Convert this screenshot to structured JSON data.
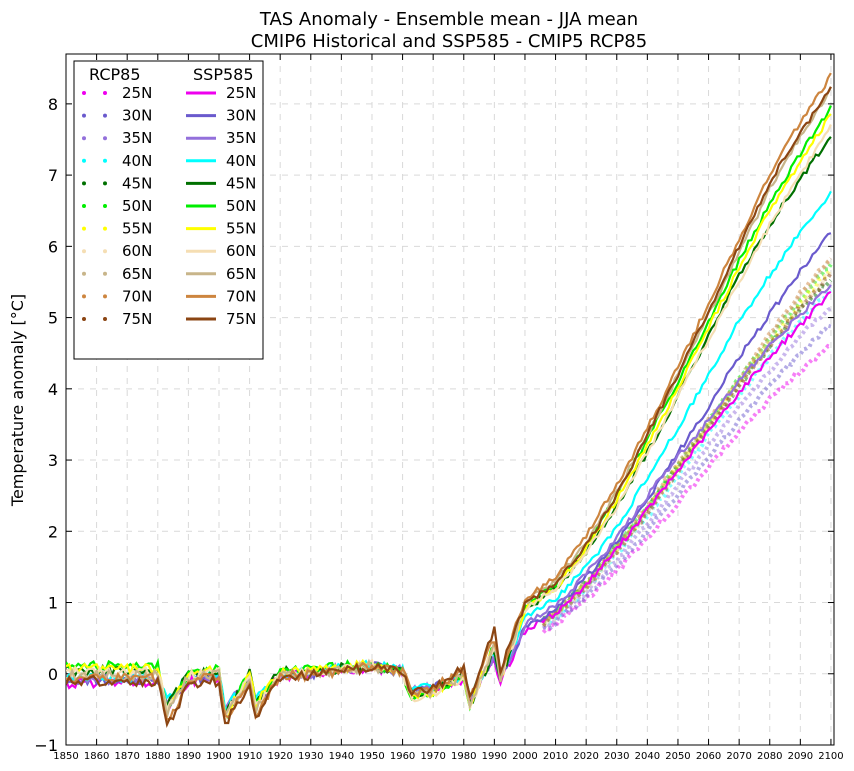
{
  "chart_data": {
    "type": "line",
    "title": "TAS Anomaly - Ensemble mean - JJA mean",
    "subtitle": "CMIP6 Historical and SSP585 - CMIP5 RCP85",
    "xlabel": "",
    "ylabel": "Temperature anomaly [°C]",
    "xlim": [
      1850,
      2101
    ],
    "ylim": [
      -1,
      8.7
    ],
    "xticks": [
      "1850",
      "1860",
      "1870",
      "1880",
      "1890",
      "1900",
      "1910",
      "1920",
      "1930",
      "1940",
      "1950",
      "1960",
      "1970",
      "1980",
      "1990",
      "2000",
      "2010",
      "2020",
      "2030",
      "2040",
      "2050",
      "2060",
      "2070",
      "2080",
      "2090",
      "2100"
    ],
    "yticks": [
      "−1",
      "0",
      "1",
      "2",
      "3",
      "4",
      "5",
      "6",
      "7",
      "8"
    ],
    "grid": true,
    "legend_position": "top-left",
    "legend_headers": [
      "RCP85",
      "SSP585"
    ],
    "colors": {
      "25N": "#ee00ee",
      "30N": "#6a5acd",
      "35N": "#9370db",
      "40N": "#00ffff",
      "45N": "#007000",
      "50N": "#00ee00",
      "55N": "#ffff00",
      "60N": "#f5deb3",
      "65N": "#c8b58a",
      "70N": "#cd853f",
      "75N": "#8b4513"
    },
    "x": [
      1850,
      1860,
      1870,
      1880,
      1883,
      1890,
      1900,
      1902,
      1910,
      1912,
      1920,
      1930,
      1940,
      1950,
      1960,
      1963,
      1970,
      1980,
      1982,
      1990,
      1992,
      2000,
      2010,
      2020,
      2030,
      2040,
      2050,
      2060,
      2070,
      2080,
      2090,
      2100
    ],
    "ssp585_series": [
      {
        "name": "25N",
        "values": [
          -0.15,
          -0.12,
          -0.12,
          -0.1,
          -0.45,
          -0.1,
          -0.05,
          -0.55,
          -0.1,
          -0.4,
          -0.05,
          0.0,
          0.05,
          0.1,
          0.02,
          -0.25,
          -0.2,
          -0.1,
          -0.35,
          0.2,
          -0.1,
          0.6,
          0.85,
          1.25,
          1.75,
          2.3,
          2.85,
          3.4,
          3.95,
          4.45,
          4.9,
          5.35
        ]
      },
      {
        "name": "30N",
        "values": [
          -0.1,
          -0.1,
          -0.1,
          -0.08,
          -0.45,
          -0.08,
          -0.03,
          -0.55,
          -0.08,
          -0.4,
          -0.03,
          0.0,
          0.06,
          0.1,
          0.03,
          -0.25,
          -0.18,
          -0.05,
          -0.35,
          0.25,
          -0.05,
          0.65,
          0.9,
          1.35,
          1.85,
          2.45,
          3.1,
          3.75,
          4.45,
          5.05,
          5.65,
          6.2
        ]
      },
      {
        "name": "35N",
        "values": [
          -0.08,
          -0.08,
          -0.08,
          -0.06,
          -0.4,
          -0.06,
          -0.02,
          -0.5,
          -0.06,
          -0.38,
          -0.02,
          0.01,
          0.07,
          0.11,
          0.04,
          -0.24,
          -0.17,
          -0.04,
          -0.33,
          0.27,
          -0.04,
          0.7,
          0.95,
          1.4,
          1.9,
          2.5,
          3.05,
          3.55,
          4.1,
          4.6,
          5.05,
          5.45
        ]
      },
      {
        "name": "40N",
        "values": [
          -0.05,
          -0.05,
          -0.05,
          -0.03,
          -0.4,
          -0.03,
          0.0,
          -0.5,
          -0.04,
          -0.37,
          0.0,
          0.02,
          0.08,
          0.12,
          0.05,
          -0.25,
          -0.18,
          -0.02,
          -0.35,
          0.3,
          -0.02,
          0.8,
          1.05,
          1.5,
          2.05,
          2.75,
          3.45,
          4.2,
          4.95,
          5.6,
          6.2,
          6.75
        ]
      },
      {
        "name": "45N",
        "values": [
          0.05,
          0.05,
          0.05,
          0.08,
          -0.45,
          0.0,
          0.05,
          -0.6,
          0.0,
          -0.4,
          0.02,
          0.03,
          0.08,
          0.12,
          0.02,
          -0.3,
          -0.22,
          -0.02,
          -0.45,
          0.35,
          -0.05,
          0.9,
          1.2,
          1.7,
          2.35,
          3.1,
          3.9,
          4.75,
          5.6,
          6.3,
          6.95,
          7.55
        ]
      },
      {
        "name": "50N",
        "values": [
          0.12,
          0.12,
          0.1,
          0.12,
          -0.5,
          0.02,
          0.08,
          -0.65,
          0.02,
          -0.45,
          0.04,
          0.05,
          0.1,
          0.15,
          0.02,
          -0.35,
          -0.25,
          -0.02,
          -0.5,
          0.4,
          -0.05,
          0.95,
          1.25,
          1.8,
          2.5,
          3.3,
          4.1,
          4.95,
          5.8,
          6.6,
          7.3,
          7.95
        ]
      },
      {
        "name": "55N",
        "values": [
          0.08,
          0.08,
          0.06,
          0.08,
          -0.5,
          0.0,
          0.05,
          -0.6,
          0.0,
          -0.42,
          0.02,
          0.04,
          0.09,
          0.13,
          0.01,
          -0.35,
          -0.25,
          -0.03,
          -0.45,
          0.38,
          -0.05,
          0.9,
          1.2,
          1.75,
          2.45,
          3.2,
          4.0,
          4.85,
          5.7,
          6.5,
          7.2,
          7.85
        ]
      },
      {
        "name": "60N",
        "values": [
          0.02,
          0.02,
          0.02,
          0.03,
          -0.5,
          -0.03,
          0.03,
          -0.6,
          -0.03,
          -0.45,
          0.0,
          0.02,
          0.07,
          0.12,
          0.0,
          -0.38,
          -0.27,
          -0.04,
          -0.48,
          0.38,
          -0.06,
          0.9,
          1.2,
          1.7,
          2.35,
          3.1,
          3.9,
          4.7,
          5.5,
          6.3,
          7.0,
          7.7
        ]
      },
      {
        "name": "65N",
        "values": [
          -0.02,
          -0.02,
          -0.03,
          -0.01,
          -0.55,
          -0.05,
          0.0,
          -0.6,
          -0.05,
          -0.5,
          -0.02,
          0.0,
          0.05,
          0.11,
          0.0,
          -0.35,
          -0.25,
          -0.02,
          -0.45,
          0.4,
          -0.05,
          1.0,
          1.3,
          1.85,
          2.55,
          3.35,
          4.2,
          5.05,
          5.9,
          6.8,
          7.55,
          8.2
        ]
      },
      {
        "name": "70N",
        "values": [
          -0.05,
          -0.05,
          -0.07,
          -0.05,
          -0.7,
          -0.1,
          -0.05,
          -0.65,
          -0.1,
          -0.55,
          -0.03,
          -0.01,
          0.04,
          0.1,
          0.05,
          -0.3,
          -0.2,
          0.05,
          -0.35,
          0.5,
          0.0,
          1.05,
          1.35,
          1.95,
          2.65,
          3.45,
          4.3,
          5.2,
          6.1,
          7.0,
          7.75,
          8.4
        ]
      },
      {
        "name": "75N",
        "values": [
          -0.1,
          -0.1,
          -0.12,
          -0.1,
          -0.75,
          -0.15,
          -0.1,
          -0.7,
          -0.15,
          -0.6,
          -0.05,
          -0.02,
          0.03,
          0.1,
          0.05,
          -0.28,
          -0.2,
          0.08,
          -0.3,
          0.6,
          0.05,
          1.0,
          1.25,
          1.8,
          2.5,
          3.35,
          4.2,
          5.1,
          6.0,
          6.9,
          7.6,
          8.2
        ]
      }
    ],
    "rcp85_x": [
      2006,
      2010,
      2020,
      2030,
      2040,
      2050,
      2060,
      2070,
      2080,
      2090,
      2100
    ],
    "rcp85_series": [
      {
        "name": "25N",
        "values": [
          0.6,
          0.7,
          1.05,
          1.45,
          1.9,
          2.4,
          2.9,
          3.4,
          3.85,
          4.25,
          4.6
        ]
      },
      {
        "name": "30N",
        "values": [
          0.62,
          0.72,
          1.1,
          1.52,
          2.0,
          2.52,
          3.05,
          3.55,
          4.05,
          4.5,
          4.9
        ]
      },
      {
        "name": "35N",
        "values": [
          0.65,
          0.75,
          1.15,
          1.6,
          2.1,
          2.65,
          3.2,
          3.75,
          4.25,
          4.75,
          5.15
        ]
      },
      {
        "name": "40N",
        "values": [
          0.7,
          0.8,
          1.2,
          1.68,
          2.2,
          2.78,
          3.35,
          3.9,
          4.45,
          4.95,
          5.4
        ]
      },
      {
        "name": "45N",
        "values": [
          0.75,
          0.85,
          1.28,
          1.78,
          2.33,
          2.9,
          3.48,
          4.05,
          4.6,
          5.1,
          5.55
        ]
      },
      {
        "name": "50N",
        "values": [
          0.75,
          0.85,
          1.3,
          1.8,
          2.35,
          2.95,
          3.55,
          4.15,
          4.7,
          5.25,
          5.75
        ]
      },
      {
        "name": "55N",
        "values": [
          0.72,
          0.83,
          1.25,
          1.75,
          2.3,
          2.9,
          3.5,
          4.1,
          4.65,
          5.2,
          5.7
        ]
      },
      {
        "name": "60N",
        "values": [
          0.68,
          0.8,
          1.2,
          1.7,
          2.25,
          2.85,
          3.45,
          4.05,
          4.6,
          5.15,
          5.65
        ]
      },
      {
        "name": "65N",
        "values": [
          0.7,
          0.82,
          1.25,
          1.75,
          2.3,
          2.9,
          3.5,
          4.1,
          4.7,
          5.3,
          5.8
        ]
      },
      {
        "name": "70N",
        "values": [
          0.72,
          0.85,
          1.28,
          1.8,
          2.35,
          2.95,
          3.55,
          4.15,
          4.75,
          5.35,
          5.85
        ]
      },
      {
        "name": "75N",
        "values": [
          0.7,
          0.82,
          1.22,
          1.72,
          2.25,
          2.85,
          3.45,
          4.05,
          4.6,
          5.15,
          5.6
        ]
      }
    ]
  }
}
